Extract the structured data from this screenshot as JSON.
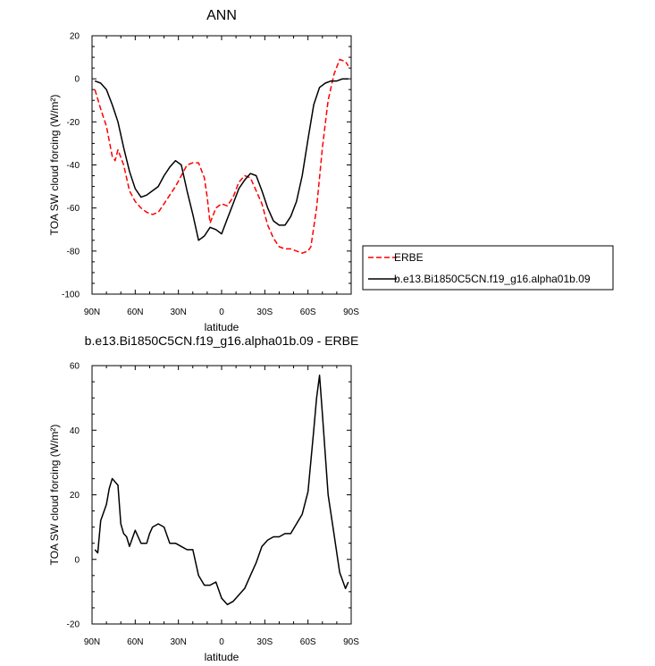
{
  "chart_data": [
    {
      "type": "line",
      "title": "ANN",
      "xlabel": "latitude",
      "ylabel": "TOA SW cloud forcing (W/m²)",
      "xlim": [
        90,
        -90
      ],
      "ylim": [
        -100,
        20
      ],
      "x_ticks": [
        90,
        60,
        30,
        0,
        -30,
        -60,
        -90
      ],
      "x_tick_labels": [
        "90N",
        "60N",
        "30N",
        "0",
        "30S",
        "60S",
        "90S"
      ],
      "y_ticks": [
        20,
        0,
        -20,
        -40,
        -60,
        -80,
        -100
      ],
      "y_tick_labels": [
        "20",
        "0",
        "-20",
        "-40",
        "-60",
        "-80",
        "-100"
      ],
      "grid": false,
      "legend_position": "right",
      "series": [
        {
          "name": "ERBE",
          "color": "#ff0000",
          "dash": "dashed",
          "x": [
            88,
            84,
            80,
            76,
            74,
            72,
            68,
            64,
            60,
            56,
            52,
            48,
            44,
            40,
            36,
            32,
            28,
            24,
            20,
            16,
            12,
            10,
            8,
            4,
            0,
            -4,
            -8,
            -12,
            -16,
            -20,
            -24,
            -28,
            -32,
            -36,
            -40,
            -44,
            -48,
            -52,
            -56,
            -60,
            -62,
            -66,
            -70,
            -74,
            -78,
            -82,
            -86,
            -88
          ],
          "values": [
            -5,
            -14,
            -22,
            -36,
            -38,
            -33,
            -40,
            -52,
            -57,
            -60,
            -62,
            -63,
            -62,
            -58,
            -54,
            -50,
            -45,
            -40,
            -39,
            -39,
            -46,
            -55,
            -67,
            -60,
            -58,
            -59,
            -55,
            -48,
            -45,
            -46,
            -52,
            -58,
            -68,
            -74,
            -78,
            -79,
            -79,
            -80,
            -81,
            -80,
            -78,
            -60,
            -32,
            -10,
            2,
            9,
            8,
            6
          ]
        },
        {
          "name": "b.e13.Bi1850C5CN.f19_g16.alpha01b.09",
          "color": "#000000",
          "dash": "solid",
          "x": [
            88,
            84,
            80,
            76,
            72,
            68,
            64,
            60,
            56,
            52,
            48,
            44,
            40,
            36,
            32,
            28,
            24,
            20,
            16,
            12,
            8,
            4,
            0,
            -4,
            -8,
            -12,
            -16,
            -20,
            -24,
            -28,
            -32,
            -36,
            -40,
            -44,
            -48,
            -52,
            -56,
            -60,
            -64,
            -68,
            -72,
            -76,
            -80,
            -84,
            -88
          ],
          "values": [
            -1,
            -2,
            -5,
            -12,
            -20,
            -32,
            -43,
            -51,
            -55,
            -54,
            -52,
            -50,
            -45,
            -41,
            -38,
            -40,
            -52,
            -63,
            -75,
            -73,
            -69,
            -70,
            -72,
            -65,
            -58,
            -51,
            -47,
            -44,
            -45,
            -52,
            -60,
            -66,
            -68,
            -68,
            -64,
            -57,
            -45,
            -28,
            -12,
            -4,
            -2,
            -1,
            -1,
            0,
            0
          ]
        }
      ]
    },
    {
      "type": "line",
      "title": "b.e13.Bi1850C5CN.f19_g16.alpha01b.09 - ERBE",
      "xlabel": "latitude",
      "ylabel": "TOA SW cloud forcing (W/m²)",
      "xlim": [
        90,
        -90
      ],
      "ylim": [
        -20,
        60
      ],
      "x_ticks": [
        90,
        60,
        30,
        0,
        -30,
        -60,
        -90
      ],
      "x_tick_labels": [
        "90N",
        "60N",
        "30N",
        "0",
        "30S",
        "60S",
        "90S"
      ],
      "y_ticks": [
        60,
        40,
        20,
        0,
        -20
      ],
      "y_tick_labels": [
        "60",
        "40",
        "20",
        "0",
        "-20"
      ],
      "grid": false,
      "series": [
        {
          "name": "",
          "color": "#000000",
          "dash": "solid",
          "x": [
            88,
            86,
            84,
            80,
            78,
            76,
            72,
            70,
            68,
            66,
            64,
            60,
            58,
            56,
            52,
            50,
            48,
            44,
            40,
            36,
            32,
            28,
            24,
            20,
            16,
            12,
            8,
            4,
            0,
            -4,
            -8,
            -12,
            -16,
            -20,
            -24,
            -28,
            -32,
            -36,
            -40,
            -44,
            -48,
            -52,
            -56,
            -60,
            -64,
            -66,
            -68,
            -70,
            -74,
            -78,
            -82,
            -86,
            -88
          ],
          "values": [
            3,
            2,
            12,
            17,
            22,
            25,
            23,
            11,
            8,
            7,
            4,
            9,
            7,
            5,
            5,
            8,
            10,
            11,
            10,
            5,
            5,
            4,
            3,
            3,
            -5,
            -8,
            -8,
            -7,
            -12,
            -14,
            -13,
            -11,
            -9,
            -5,
            -1,
            4,
            6,
            7,
            7,
            8,
            8,
            11,
            14,
            21,
            40,
            50,
            57,
            45,
            20,
            8,
            -4,
            -9,
            -7
          ]
        }
      ]
    }
  ]
}
